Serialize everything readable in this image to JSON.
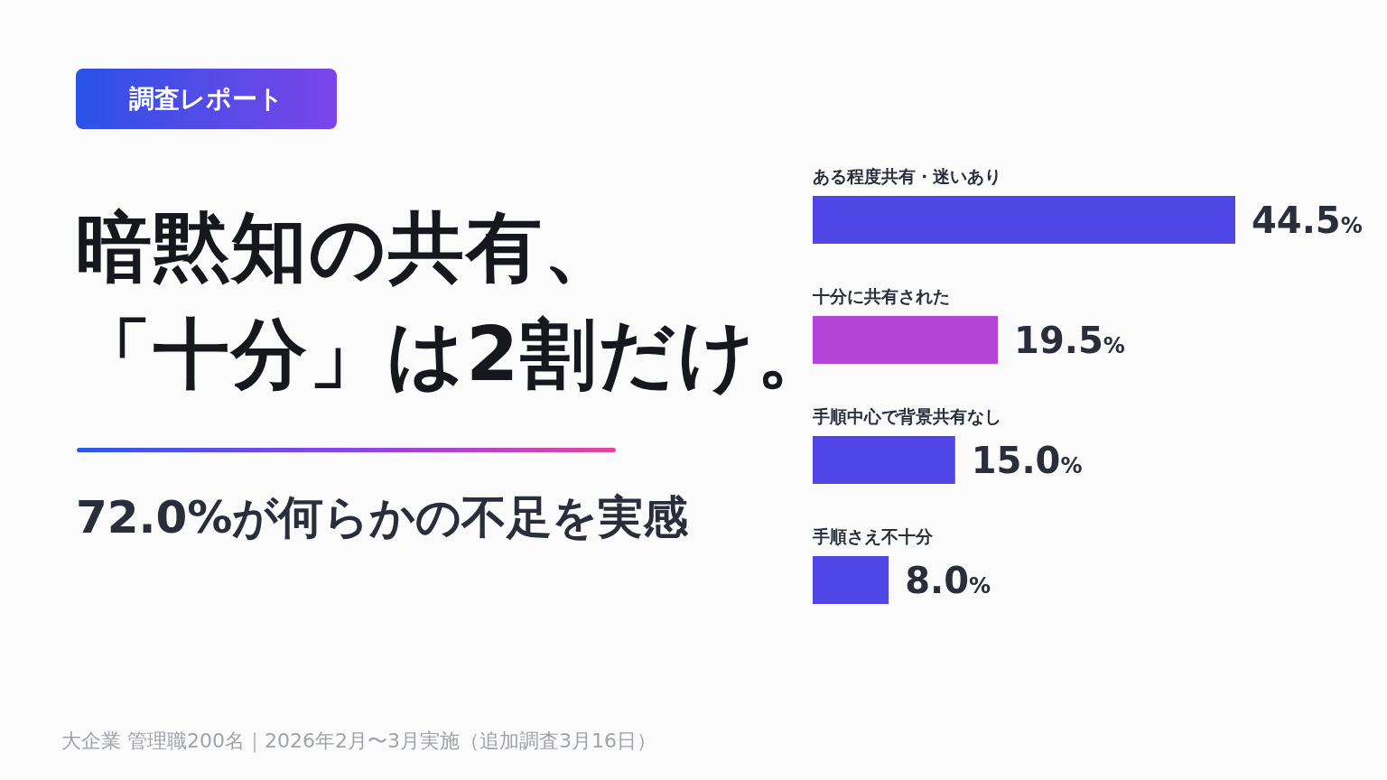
{
  "chart_data": {
    "type": "bar",
    "orientation": "horizontal",
    "title": "暗黙知の共有、「十分」は2割だけ。",
    "subtitle": "72.0%が何らかの不足を実感",
    "categories": [
      "ある程度共有・迷いあり",
      "十分に共有された",
      "手順中心で背景共有なし",
      "手順さえ不十分"
    ],
    "values": [
      44.5,
      19.5,
      15.0,
      8.0
    ],
    "colors": [
      "#4f46e5",
      "#b545d6",
      "#4f46e5",
      "#4f46e5"
    ],
    "value_labels": [
      "44.5%",
      "19.5%",
      "15.0%",
      "8.0%"
    ],
    "annotations": [
      "調査レポート",
      "大企業 管理職200名｜2026年2月〜3月実施（追加調査3月16日）"
    ]
  }
}
